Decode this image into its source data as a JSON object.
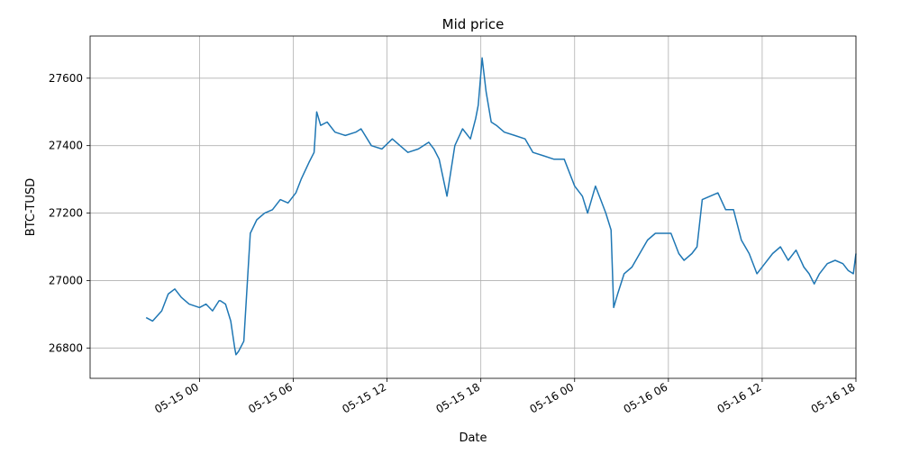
{
  "chart_data": {
    "type": "line",
    "title": "Mid price",
    "xlabel": "Date",
    "ylabel": "BTC-TUSD",
    "x_range": [
      "2023-05-14 17:00",
      "2023-05-16 18:00"
    ],
    "ylim": [
      26710,
      27725
    ],
    "grid": true,
    "x_ticks": [
      {
        "x": "2023-05-15 00:00",
        "label": "05-15 00"
      },
      {
        "x": "2023-05-15 06:00",
        "label": "05-15 06"
      },
      {
        "x": "2023-05-15 12:00",
        "label": "05-15 12"
      },
      {
        "x": "2023-05-15 18:00",
        "label": "05-15 18"
      },
      {
        "x": "2023-05-16 00:00",
        "label": "05-16 00"
      },
      {
        "x": "2023-05-16 06:00",
        "label": "05-16 06"
      },
      {
        "x": "2023-05-16 12:00",
        "label": "05-16 12"
      },
      {
        "x": "2023-05-16 18:00",
        "label": "05-16 18"
      }
    ],
    "y_ticks": [
      26800,
      27000,
      27200,
      27400,
      27600
    ],
    "series": [
      {
        "color": "#1f77b4",
        "x": [
          "2023-05-14 20:35",
          "2023-05-14 21:00",
          "2023-05-14 21:35",
          "2023-05-14 22:00",
          "2023-05-14 22:25",
          "2023-05-14 22:50",
          "2023-05-14 23:20",
          "2023-05-15 00:00",
          "2023-05-15 00:25",
          "2023-05-15 00:50",
          "2023-05-15 01:15",
          "2023-05-15 01:20",
          "2023-05-15 01:40",
          "2023-05-15 02:00",
          "2023-05-15 02:15",
          "2023-05-15 02:20",
          "2023-05-15 02:30",
          "2023-05-15 02:50",
          "2023-05-15 03:15",
          "2023-05-15 03:40",
          "2023-05-15 04:10",
          "2023-05-15 04:40",
          "2023-05-15 05:10",
          "2023-05-15 05:40",
          "2023-05-15 06:10",
          "2023-05-15 06:30",
          "2023-05-15 07:00",
          "2023-05-15 07:20",
          "2023-05-15 07:30",
          "2023-05-15 07:45",
          "2023-05-15 08:10",
          "2023-05-15 08:40",
          "2023-05-15 09:20",
          "2023-05-15 10:00",
          "2023-05-15 10:20",
          "2023-05-15 11:00",
          "2023-05-15 11:40",
          "2023-05-15 12:20",
          "2023-05-15 12:50",
          "2023-05-15 13:20",
          "2023-05-15 14:00",
          "2023-05-15 14:40",
          "2023-05-15 15:00",
          "2023-05-15 15:20",
          "2023-05-15 15:50",
          "2023-05-15 16:20",
          "2023-05-15 16:50",
          "2023-05-15 17:20",
          "2023-05-15 17:40",
          "2023-05-15 17:50",
          "2023-05-15 18:05",
          "2023-05-15 18:20",
          "2023-05-15 18:40",
          "2023-05-15 19:00",
          "2023-05-15 19:30",
          "2023-05-15 20:10",
          "2023-05-15 20:50",
          "2023-05-15 21:20",
          "2023-05-15 22:00",
          "2023-05-15 22:40",
          "2023-05-15 23:20",
          "2023-05-16 00:00",
          "2023-05-16 00:30",
          "2023-05-16 00:50",
          "2023-05-16 01:20",
          "2023-05-16 01:40",
          "2023-05-16 02:00",
          "2023-05-16 02:20",
          "2023-05-16 02:30",
          "2023-05-16 02:45",
          "2023-05-16 03:10",
          "2023-05-16 03:40",
          "2023-05-16 04:10",
          "2023-05-16 04:40",
          "2023-05-16 05:10",
          "2023-05-16 05:40",
          "2023-05-16 06:10",
          "2023-05-16 06:40",
          "2023-05-16 07:00",
          "2023-05-16 07:30",
          "2023-05-16 07:50",
          "2023-05-16 08:10",
          "2023-05-16 08:40",
          "2023-05-16 09:10",
          "2023-05-16 09:40",
          "2023-05-16 10:10",
          "2023-05-16 10:40",
          "2023-05-16 11:10",
          "2023-05-16 11:40",
          "2023-05-16 12:10",
          "2023-05-16 12:40",
          "2023-05-16 13:10",
          "2023-05-16 13:40",
          "2023-05-16 14:10",
          "2023-05-16 14:40",
          "2023-05-16 15:00",
          "2023-05-16 15:20",
          "2023-05-16 15:40",
          "2023-05-16 16:10",
          "2023-05-16 16:40",
          "2023-05-16 17:10",
          "2023-05-16 17:30",
          "2023-05-16 17:50",
          "2023-05-16 18:00"
        ],
        "y": [
          26890,
          26880,
          26910,
          26960,
          26975,
          26950,
          26930,
          26920,
          26930,
          26910,
          26940,
          26940,
          26930,
          26880,
          26800,
          26780,
          26790,
          26820,
          27140,
          27180,
          27200,
          27210,
          27240,
          27230,
          27260,
          27300,
          27350,
          27380,
          27500,
          27460,
          27470,
          27440,
          27430,
          27440,
          27450,
          27400,
          27390,
          27420,
          27400,
          27380,
          27390,
          27410,
          27390,
          27360,
          27250,
          27400,
          27450,
          27420,
          27480,
          27520,
          27660,
          27560,
          27470,
          27460,
          27440,
          27430,
          27420,
          27380,
          27370,
          27360,
          27360,
          27280,
          27250,
          27200,
          27280,
          27240,
          27200,
          27150,
          26920,
          26960,
          27020,
          27040,
          27080,
          27120,
          27140,
          27140,
          27140,
          27080,
          27060,
          27080,
          27100,
          27240,
          27250,
          27260,
          27210,
          27210,
          27120,
          27080,
          27020,
          27050,
          27080,
          27100,
          27060,
          27090,
          27040,
          27020,
          26990,
          27020,
          27050,
          27060,
          27050,
          27030,
          27020,
          27080
        ]
      }
    ]
  }
}
